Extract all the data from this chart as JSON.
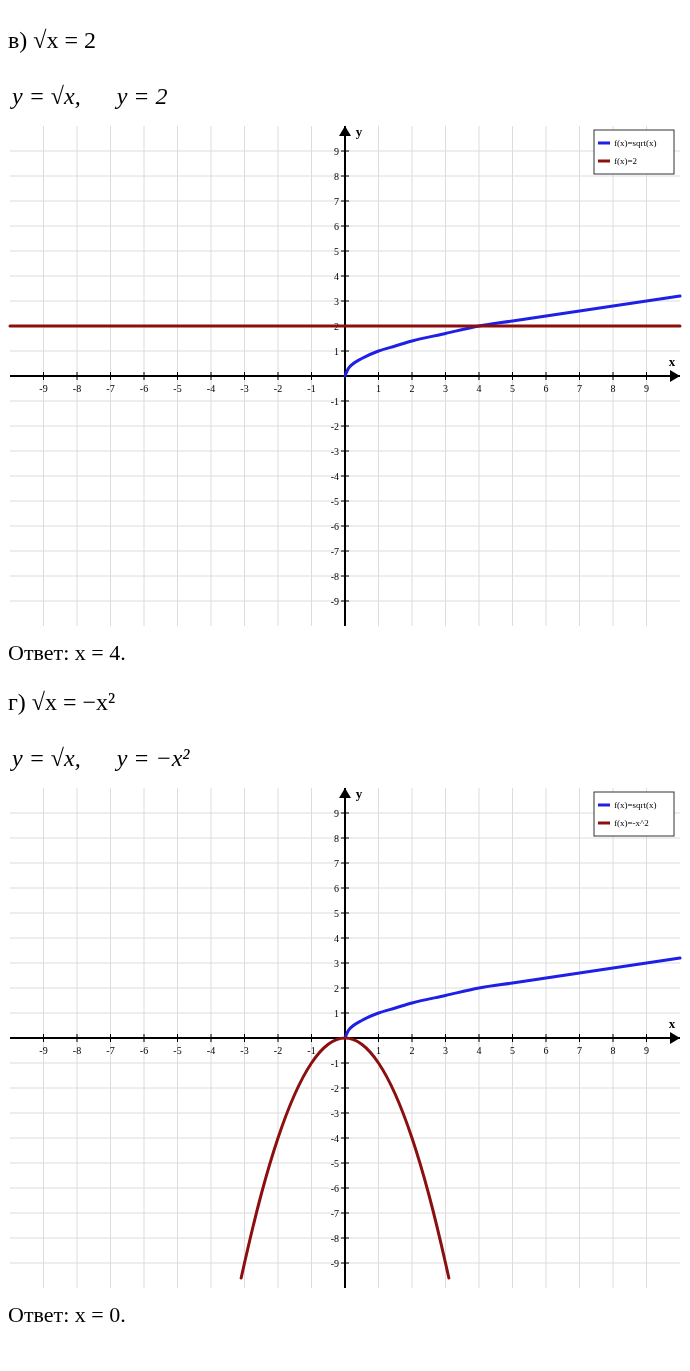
{
  "chart_data": [
    {
      "type": "line",
      "title": "в) √x = 2",
      "subtitle": "y = √x,      y = 2",
      "xlabel": "x",
      "ylabel": "y",
      "xlim": [
        -10,
        10
      ],
      "ylim": [
        -10,
        10
      ],
      "xticks": [
        -9,
        -8,
        -7,
        -6,
        -5,
        -4,
        -3,
        -2,
        -1,
        1,
        2,
        3,
        4,
        5,
        6,
        7,
        8,
        9
      ],
      "yticks": [
        -9,
        -8,
        -7,
        -6,
        -5,
        -4,
        -3,
        -2,
        -1,
        1,
        2,
        3,
        4,
        5,
        6,
        7,
        8,
        9
      ],
      "grid": true,
      "legend": "top right",
      "series": [
        {
          "name": "f(x)=sqrt(x)",
          "color": "#1f1fe6",
          "x": [
            0,
            0.1,
            0.25,
            0.5,
            1,
            1.5,
            2,
            3,
            4,
            5,
            6,
            7,
            8,
            9,
            10
          ],
          "values": [
            0,
            0.3,
            0.5,
            0.7,
            1,
            1.2,
            1.4,
            1.7,
            2,
            2.2,
            2.4,
            2.6,
            2.8,
            3,
            3.2
          ]
        },
        {
          "name": "f(x)=2",
          "color": "#8b0f0f",
          "x": [
            -10,
            10
          ],
          "values": [
            2,
            2
          ]
        }
      ],
      "annotations": [
        "Ответ: x = 4."
      ]
    },
    {
      "type": "line",
      "title": "г) √x = −x²",
      "subtitle": "y = √x,      y = −x²",
      "xlabel": "x",
      "ylabel": "y",
      "xlim": [
        -10,
        10
      ],
      "ylim": [
        -10,
        10
      ],
      "xticks": [
        -9,
        -8,
        -7,
        -6,
        -5,
        -4,
        -3,
        -2,
        -1,
        1,
        2,
        3,
        4,
        5,
        6,
        7,
        8,
        9
      ],
      "yticks": [
        -9,
        -8,
        -7,
        -6,
        -5,
        -4,
        -3,
        -2,
        -1,
        1,
        2,
        3,
        4,
        5,
        6,
        7,
        8,
        9
      ],
      "grid": true,
      "legend": "top right",
      "series": [
        {
          "name": "f(x)=sqrt(x)",
          "color": "#1f1fe6",
          "x": [
            0,
            0.1,
            0.25,
            0.5,
            1,
            1.5,
            2,
            3,
            4,
            5,
            6,
            7,
            8,
            9,
            10
          ],
          "values": [
            0,
            0.3,
            0.5,
            0.7,
            1,
            1.2,
            1.4,
            1.7,
            2,
            2.2,
            2.4,
            2.6,
            2.8,
            3,
            3.2
          ]
        },
        {
          "name": "f(x)=-x^2",
          "color": "#8b0f0f",
          "x": [
            -3.1,
            -3,
            -2.5,
            -2,
            -1.5,
            -1,
            -0.5,
            0,
            0.5,
            1,
            1.5,
            2,
            2.5,
            3,
            3.1
          ],
          "values": [
            -9.6,
            -9,
            -6.25,
            -4,
            -2.25,
            -1,
            -0.25,
            0,
            -0.25,
            -1,
            -2.25,
            -4,
            -6.25,
            -9,
            -9.6
          ]
        }
      ],
      "annotations": [
        "Ответ: x = 0."
      ]
    }
  ]
}
